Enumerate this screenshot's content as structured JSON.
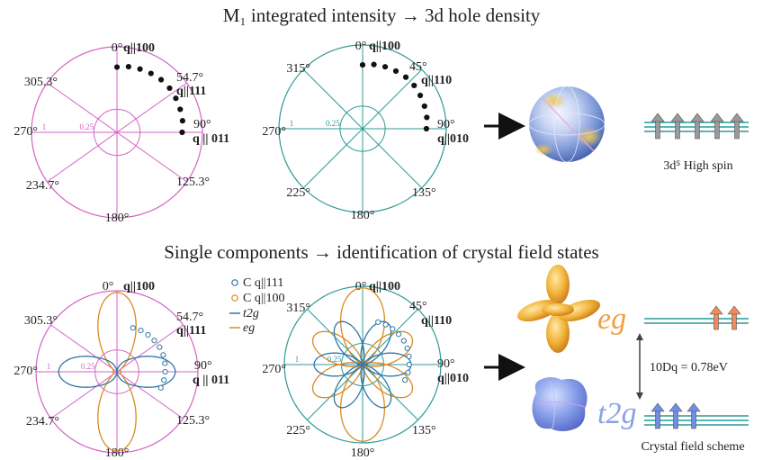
{
  "colors": {
    "magenta": "#d563c5",
    "teal": "#2f9a96",
    "teal_dark": "#167a78",
    "orange": "#d98a24",
    "blue": "#2f77a8",
    "eg_text": "#f0a040",
    "t2g_text": "#8aa2e2",
    "arrow_up_grey": "#9a9a9a",
    "arrow_up_orange": "#f28a5a",
    "arrow_up_blue": "#6f8fe6"
  },
  "section1": {
    "title": "M₁ integrated intensity → 3d hole density",
    "left_polar": {
      "angles": {
        "a0": "0°",
        "a54": "54.7°",
        "a90": "90°",
        "a125": "125.3°",
        "a180": "180°",
        "a234": "234.7°",
        "a270": "270°",
        "a305": "305.3°"
      },
      "dirs": {
        "d100": "q||100",
        "d111": "q||111",
        "d011": "q || 011"
      },
      "radial": {
        "r1": "1",
        "r025": "0.25"
      }
    },
    "right_polar": {
      "angles": {
        "a0": "0°",
        "a45": "45°",
        "a90": "90°",
        "a135": "135°",
        "a180": "180°",
        "a225": "225°",
        "a270": "270°",
        "a315": "315°"
      },
      "dirs": {
        "d100": "q||100",
        "d110": "q||110",
        "d010": "q||010"
      },
      "radial": {
        "r1": "1",
        "r025": "0.25"
      }
    },
    "high_spin_label": "3d⁵ High spin",
    "high_spin_arrow_count": 5
  },
  "section2": {
    "title": "Single components → identification of crystal field states",
    "legend": {
      "c111": "C q||111",
      "c100": "C q||100",
      "t2g": "t2g",
      "eg": "eg"
    },
    "left_polar": {
      "angles": {
        "a0": "0°",
        "a54": "54.7°",
        "a90": "90°",
        "a125": "125.3°",
        "a180": "180°",
        "a234": "234.7°",
        "a270": "270°",
        "a305": "305.3°"
      },
      "dirs": {
        "d100": "q||100",
        "d111": "q||111",
        "d011": "q || 011"
      },
      "radial": {
        "r1": "1",
        "r025": "0.25"
      }
    },
    "right_polar": {
      "angles": {
        "a0": "0°",
        "a45": "45°",
        "a90": "90°",
        "a135": "135°",
        "a180": "180°",
        "a225": "225°",
        "a270": "270°",
        "a315": "315°"
      },
      "dirs": {
        "d100": "q||100",
        "d110": "q||110",
        "d010": "q||010"
      },
      "radial": {
        "r1": "1",
        "r025": "0.25"
      }
    },
    "eg_label": "eg",
    "t2g_label": "t2g",
    "splitting_label": "10Dq = 0.78eV",
    "scheme_label": "Crystal field scheme",
    "eg_arrow_count": 2,
    "t2g_arrow_count": 3
  },
  "chart_data": {
    "type": "scatter",
    "angles_deg": [
      0,
      10,
      20,
      30,
      40,
      50,
      60,
      70,
      80,
      90
    ],
    "values": [
      0.93,
      0.95,
      0.96,
      0.97,
      0.98,
      0.98,
      0.97,
      0.96,
      0.95,
      0.93
    ]
  }
}
